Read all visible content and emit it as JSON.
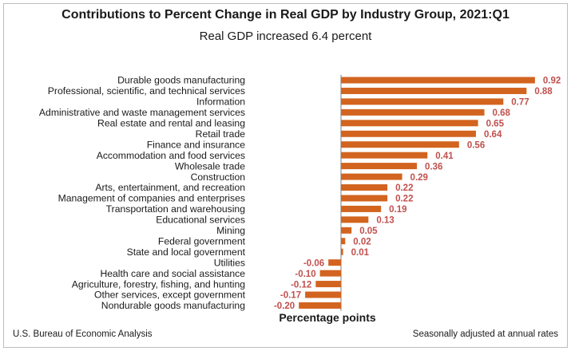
{
  "title": "Contributions to Percent Change in Real GDP by Industry Group, 2021:Q1",
  "subtitle": "Real GDP increased 6.4 percent",
  "footer": {
    "source": "U.S. Bureau of Economic Analysis",
    "note": "Seasonally adjusted at annual rates"
  },
  "colors": {
    "bar": "#d2641f",
    "value_label": "#c0504d",
    "axis": "#7f7f7f"
  },
  "chart_data": {
    "type": "bar",
    "orientation": "horizontal",
    "xlabel": "Percentage points",
    "ylabel": "",
    "grid": false,
    "categories": [
      "Durable goods manufacturing",
      "Professional, scientific, and technical services",
      "Information",
      "Administrative and waste management services",
      "Real estate and rental and leasing",
      "Retail trade",
      "Finance and insurance",
      "Accommodation and food services",
      "Wholesale trade",
      "Construction",
      "Arts, entertainment, and recreation",
      "Management of companies and enterprises",
      "Transportation and warehousing",
      "Educational services",
      "Mining",
      "Federal government",
      "State and local government",
      "Utilities",
      "Health care and social assistance",
      "Agriculture, forestry, fishing, and hunting",
      "Other services, except government",
      "Nondurable goods manufacturing"
    ],
    "values": [
      0.92,
      0.88,
      0.77,
      0.68,
      0.65,
      0.64,
      0.56,
      0.41,
      0.36,
      0.29,
      0.22,
      0.22,
      0.19,
      0.13,
      0.05,
      0.02,
      0.01,
      -0.06,
      -0.1,
      -0.12,
      -0.17,
      -0.2
    ],
    "value_labels": [
      "0.92",
      "0.88",
      "0.77",
      "0.68",
      "0.65",
      "0.64",
      "0.56",
      "0.41",
      "0.36",
      "0.29",
      "0.22",
      "0.22",
      "0.19",
      "0.13",
      "0.05",
      "0.02",
      "0.01",
      "-0.06",
      "-0.10",
      "-0.12",
      "-0.17",
      "-0.20"
    ]
  }
}
